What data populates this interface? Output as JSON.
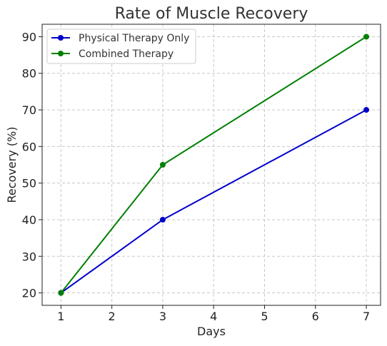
{
  "chart_data": {
    "type": "line",
    "title": "Rate of Muscle Recovery",
    "xlabel": "Days",
    "ylabel": "Recovery (%)",
    "x": [
      1,
      3,
      7
    ],
    "xlim": [
      0.63,
      7.28
    ],
    "ylim": [
      16.6,
      93.4
    ],
    "xticks": [
      1,
      2,
      3,
      4,
      5,
      6,
      7
    ],
    "yticks": [
      20,
      30,
      40,
      50,
      60,
      70,
      80,
      90
    ],
    "grid": true,
    "legend_position": "top-left",
    "series": [
      {
        "name": "Physical Therapy Only",
        "color": "#0000cc",
        "values": [
          20,
          40,
          70
        ]
      },
      {
        "name": "Combined Therapy",
        "color": "#008000",
        "values": [
          20,
          55,
          90
        ]
      }
    ]
  }
}
